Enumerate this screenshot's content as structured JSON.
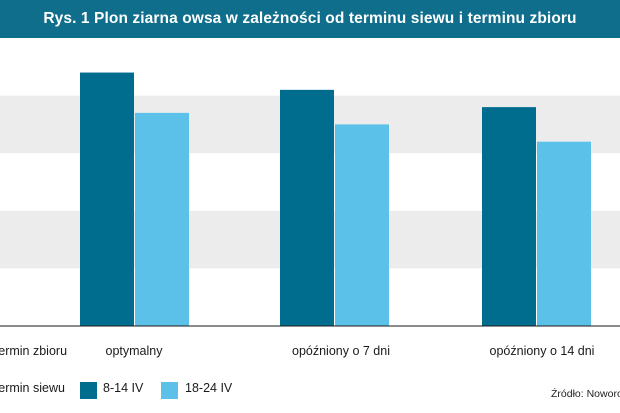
{
  "title": "Rys. 1 Plon ziarna owsa w zależności od terminu siewu i terminu zbioru",
  "chart_data": {
    "type": "bar",
    "category_axis_title": "Termin zbioru",
    "categories": [
      "optymalny",
      "opóźniony o 7 dni",
      "opóźniony o 14 dni"
    ],
    "legend_title": "Termin siewu",
    "series": [
      {
        "name": "8-14 IV",
        "values": [
          4.4,
          4.1,
          3.8
        ],
        "color": "#006d8f"
      },
      {
        "name": "18-24 IV",
        "values": [
          3.7,
          3.5,
          3.2
        ],
        "color": "#5cc1e8"
      }
    ],
    "ylim": [
      0,
      5
    ],
    "grid": "alternating horizontal bands",
    "legend_position": "bottom"
  },
  "source": "Źródło: Noworo"
}
